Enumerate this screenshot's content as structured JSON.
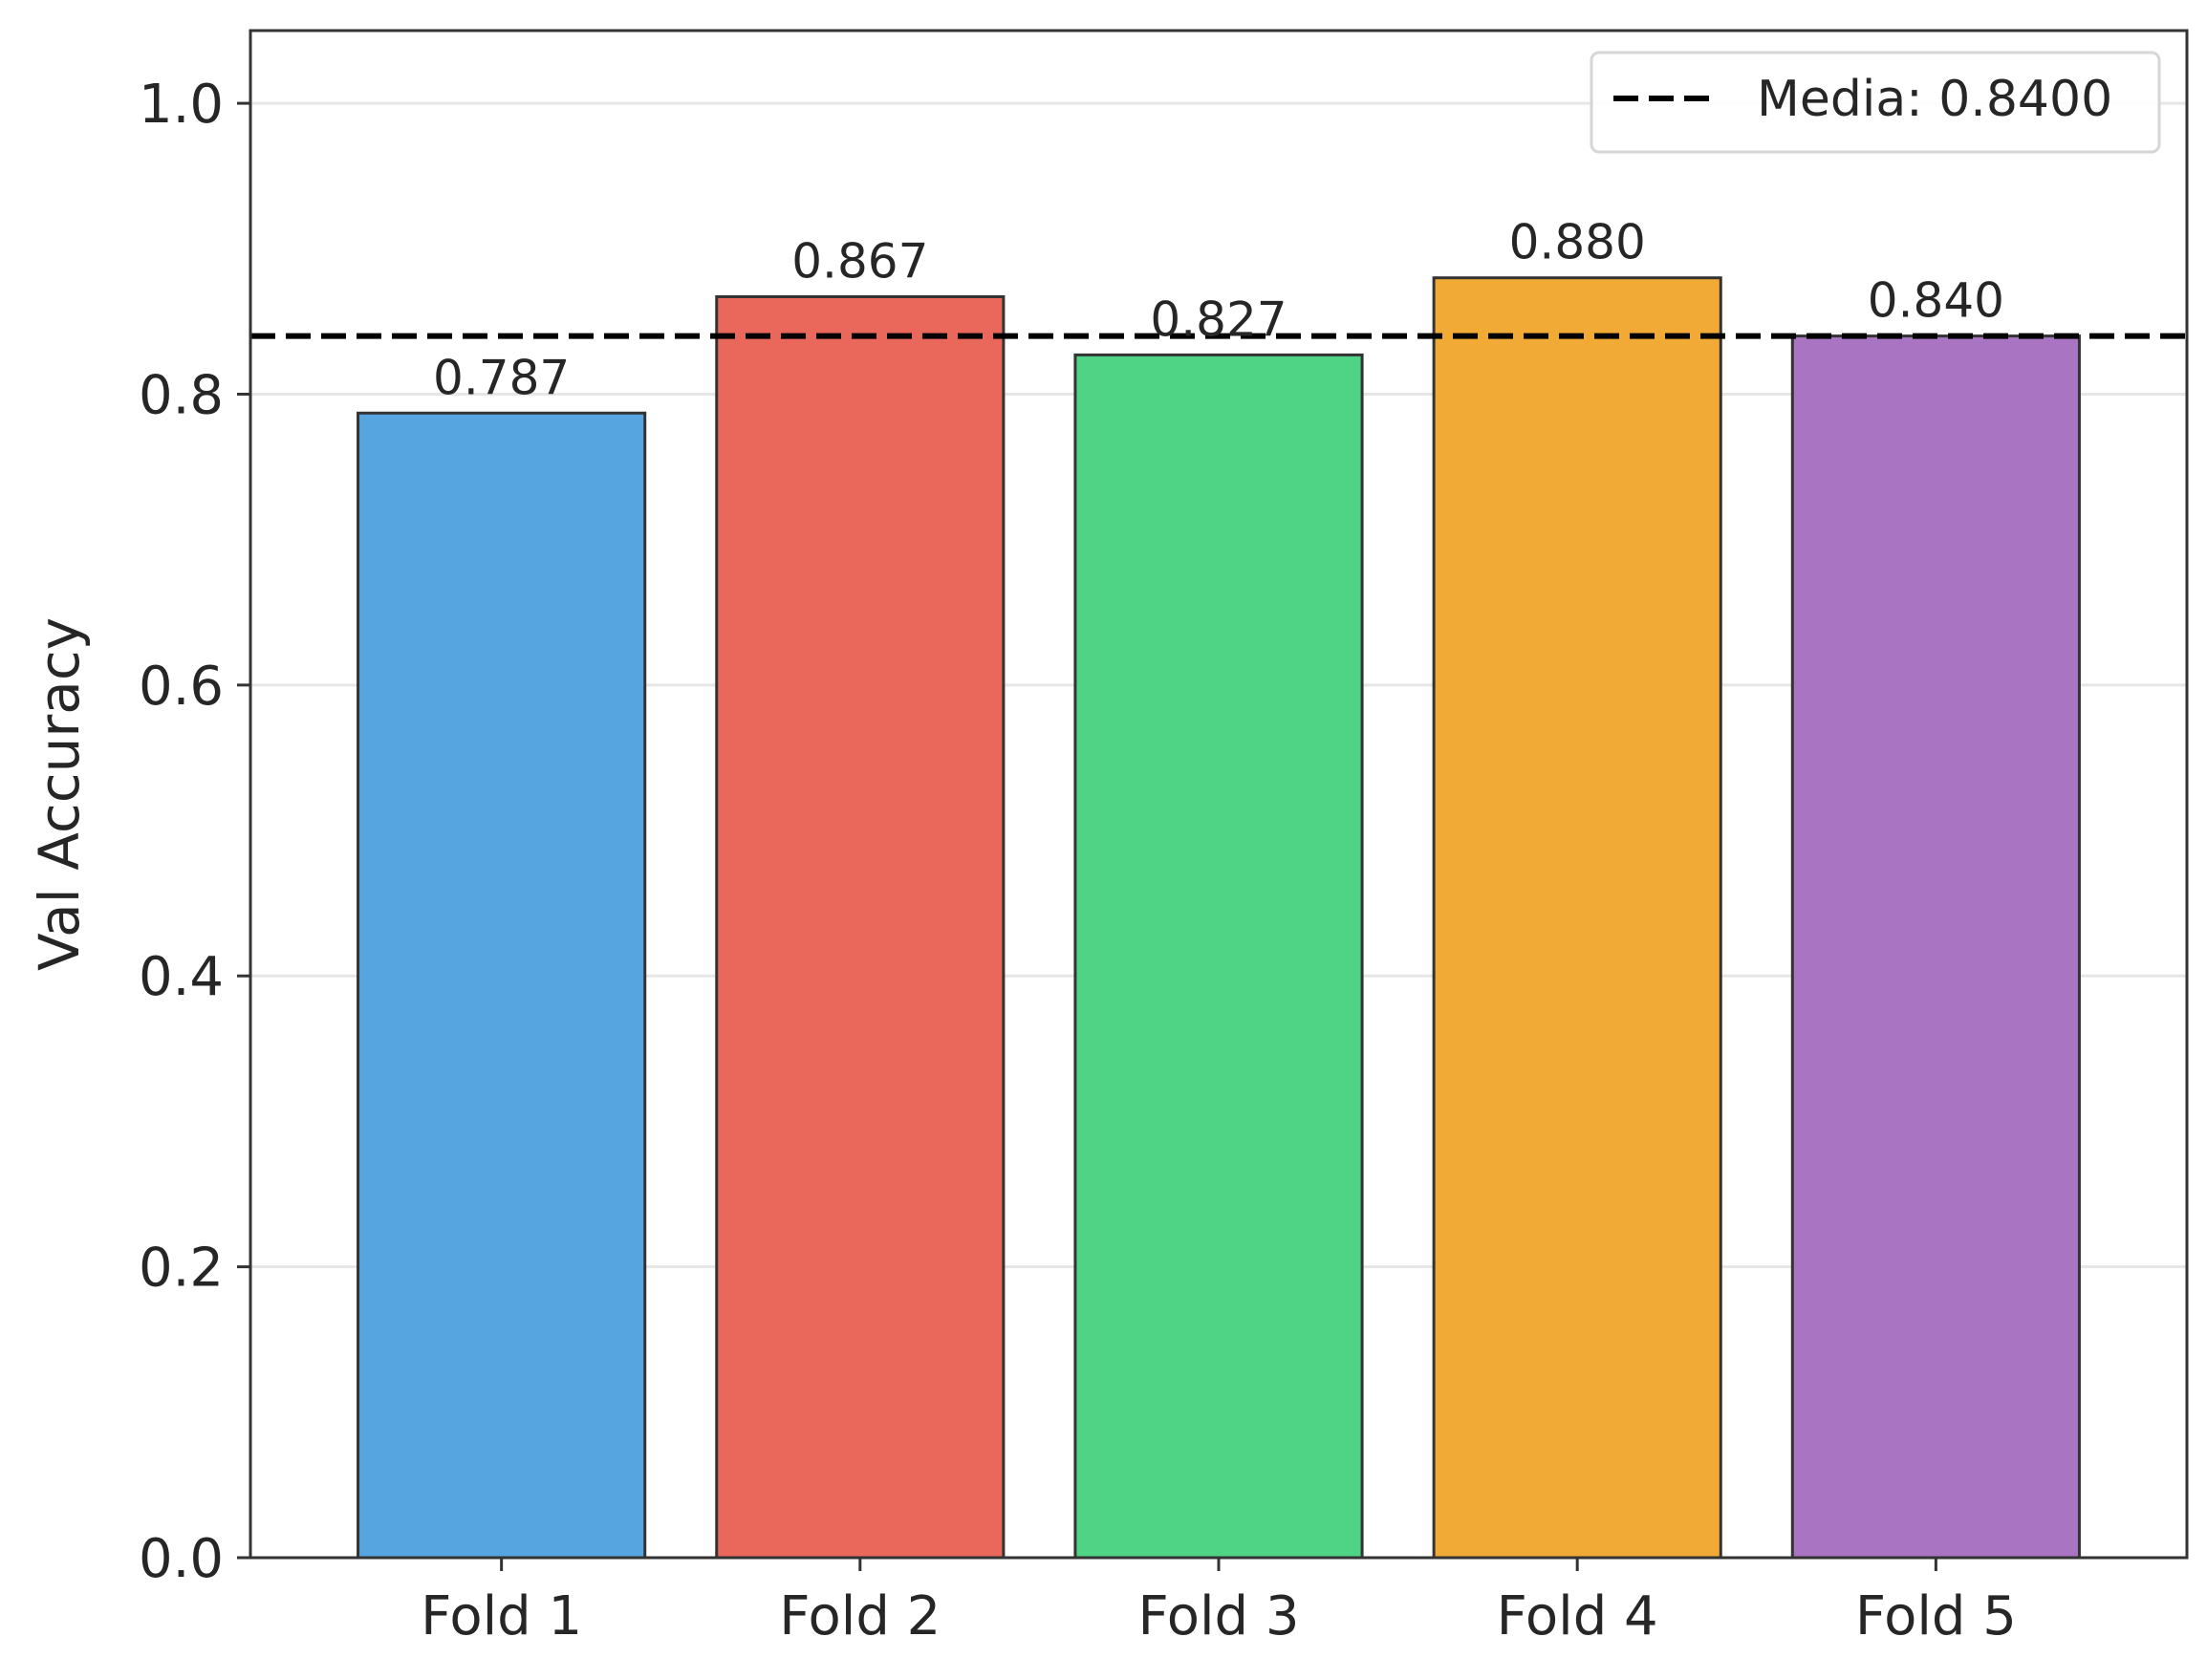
{
  "chart_data": {
    "type": "bar",
    "categories": [
      "Fold 1",
      "Fold 2",
      "Fold 3",
      "Fold 4",
      "Fold 5"
    ],
    "values": [
      0.787,
      0.867,
      0.827,
      0.88,
      0.84
    ],
    "data_labels": [
      "0.787",
      "0.867",
      "0.827",
      "0.880",
      "0.840"
    ],
    "colors": [
      "#56a5e0",
      "#ea675c",
      "#4fd486",
      "#f2aa37",
      "#a975c2"
    ],
    "ylabel": "Val Accuracy",
    "ylim": [
      0,
      1.05
    ],
    "yticks": [
      0.0,
      0.2,
      0.4,
      0.6,
      0.8,
      1.0
    ],
    "ytick_labels": [
      "0.0",
      "0.2",
      "0.4",
      "0.6",
      "0.8",
      "1.0"
    ],
    "grid": true,
    "mean_line": {
      "value": 0.84,
      "style": "dashed",
      "color": "#000000"
    },
    "legend": {
      "entries": [
        "Media: 0.8400"
      ],
      "placement": "top-right"
    }
  }
}
